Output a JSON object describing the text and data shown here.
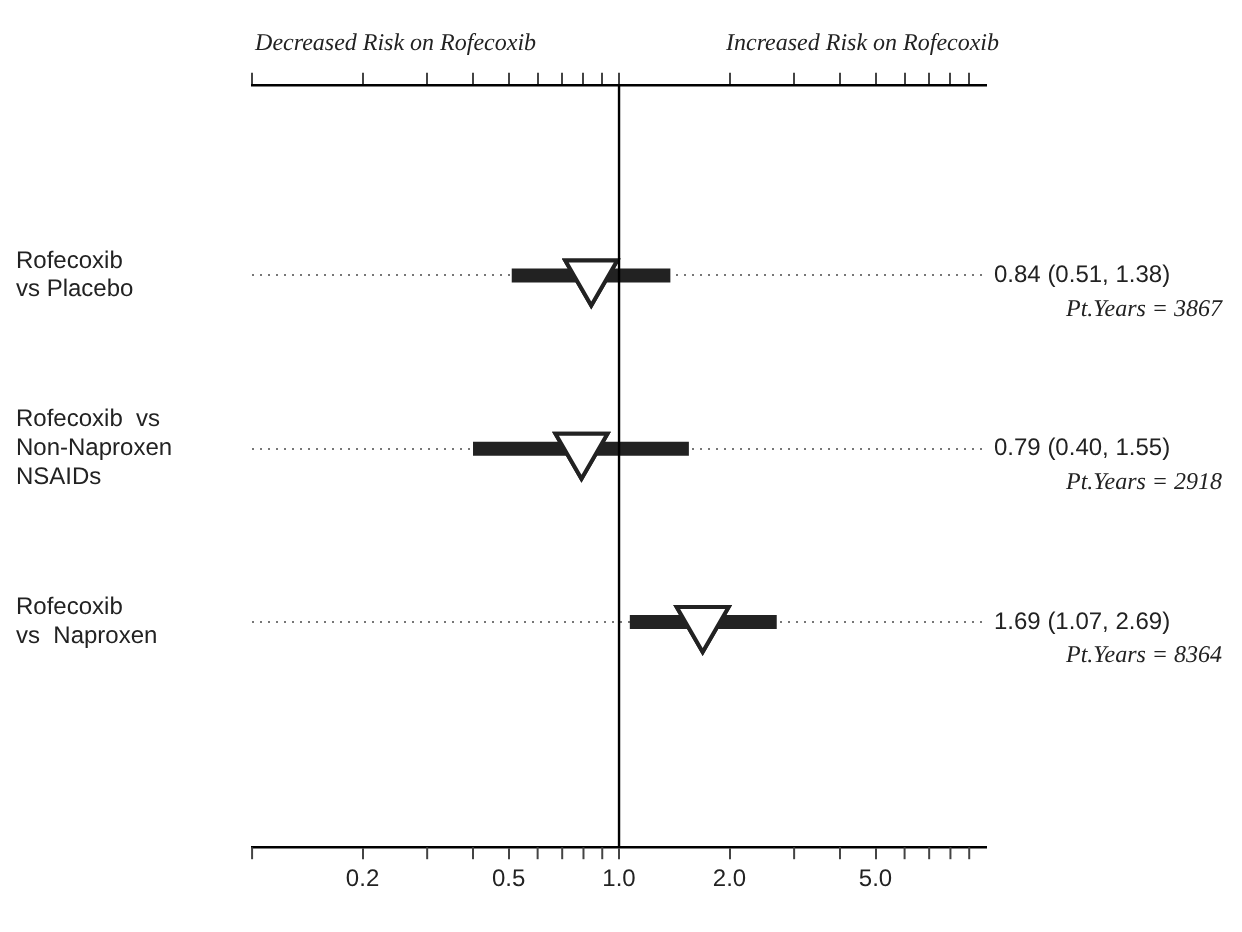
{
  "chart_data": {
    "type": "scatter",
    "orientation": "horizontal",
    "categories": [
      "Rofecoxib\nvs Placebo",
      "Rofecoxib  vs\nNon-Naproxen\nNSAIDs",
      "Rofecoxib\nvs  Naproxen"
    ],
    "values": [
      0.84,
      0.79,
      1.69
    ],
    "errors": [
      [
        0.51,
        1.38
      ],
      [
        0.4,
        1.55
      ],
      [
        1.07,
        2.69
      ]
    ],
    "value_labels": [
      "0.84 (0.51, 1.38)",
      "0.79 (0.40, 1.55)",
      "1.69 (1.07, 2.69)"
    ],
    "color": "#222222",
    "marker": "triangle",
    "log": "x",
    "grid": "y",
    "line_style": "dotted",
    "xlim": [
      0.1,
      10
    ],
    "xticks": [
      0.2,
      0.5,
      {
        "value": 1,
        "label": "1.0"
      },
      {
        "value": 2,
        "label": "2.0"
      },
      {
        "value": 5,
        "label": "5.0"
      }
    ],
    "ref_lines": [
      {
        "axis": "x",
        "value": 1
      }
    ],
    "annotations": [
      "Decreased Risk on Rofecoxib",
      "Increased Risk on Rofecoxib",
      "Pt.Years = 3867",
      "Pt.Years = 2918",
      "Pt.Years = 8364"
    ]
  }
}
